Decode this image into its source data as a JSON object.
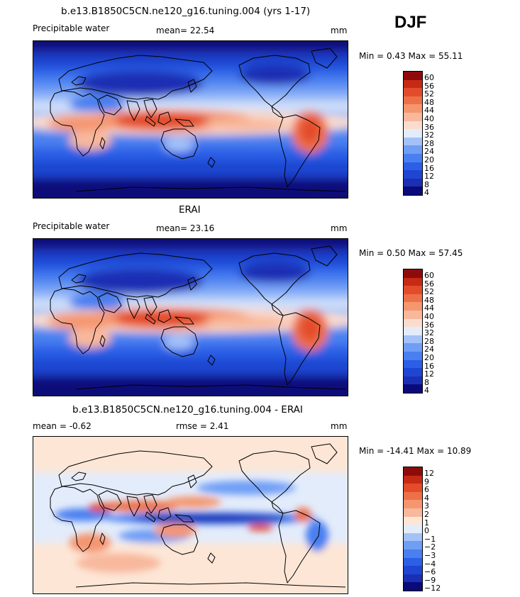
{
  "season": "DJF",
  "panels": [
    {
      "title": "b.e13.B1850C5CN.ne120_g16.tuning.004 (yrs 1-17)",
      "left_label": "Precipitable water",
      "center_label": "mean=   22.54",
      "units": "mm",
      "minmax": "Min =    0.43  Max =   55.11",
      "colorbar_labels": [
        "60",
        "56",
        "52",
        "48",
        "44",
        "40",
        "36",
        "32",
        "28",
        "24",
        "20",
        "16",
        "12",
        "8",
        "4"
      ]
    },
    {
      "title": "ERAI",
      "left_label": "Precipitable water",
      "center_label": "mean=   23.16",
      "units": "mm",
      "minmax": "Min =    0.50  Max =   57.45",
      "colorbar_labels": [
        "60",
        "56",
        "52",
        "48",
        "44",
        "40",
        "36",
        "32",
        "28",
        "24",
        "20",
        "16",
        "12",
        "8",
        "4"
      ]
    },
    {
      "title": "b.e13.B1850C5CN.ne120_g16.tuning.004 - ERAI",
      "left_label": "mean =   -0.62",
      "center_label": "rmse =    2.41",
      "units": "mm",
      "minmax": "Min = -14.41  Max =   10.89",
      "colorbar_labels": [
        "12",
        "9",
        "6",
        "4",
        "3",
        "2",
        "1",
        "0",
        "-1",
        "-2",
        "-3",
        "-4",
        "-6",
        "-9",
        "-12"
      ]
    }
  ],
  "chart_data": [
    {
      "type": "heatmap",
      "title": "b.e13.B1850C5CN.ne120_g16.tuning.004 (yrs 1-17)",
      "variable": "Precipitable water",
      "units": "mm",
      "mean": 22.54,
      "min": 0.43,
      "max": 55.11,
      "contour_levels": [
        4,
        8,
        12,
        16,
        20,
        24,
        28,
        32,
        36,
        40,
        44,
        48,
        52,
        56,
        60
      ],
      "colors": [
        "#0a0a7a",
        "#1a2fb4",
        "#1e46d2",
        "#2c5fe6",
        "#4a7ff0",
        "#6f9ef5",
        "#a4c2f8",
        "#e3ecfb",
        "#fbdccc",
        "#f8b89c",
        "#f5966f",
        "#ee7048",
        "#e34c2b",
        "#c62a14",
        "#8f0b0b"
      ]
    },
    {
      "type": "heatmap",
      "title": "ERAI",
      "variable": "Precipitable water",
      "units": "mm",
      "mean": 23.16,
      "min": 0.5,
      "max": 57.45,
      "contour_levels": [
        4,
        8,
        12,
        16,
        20,
        24,
        28,
        32,
        36,
        40,
        44,
        48,
        52,
        56,
        60
      ],
      "colors": [
        "#0a0a7a",
        "#1a2fb4",
        "#1e46d2",
        "#2c5fe6",
        "#4a7ff0",
        "#6f9ef5",
        "#a4c2f8",
        "#e3ecfb",
        "#fbdccc",
        "#f8b89c",
        "#f5966f",
        "#ee7048",
        "#e34c2b",
        "#c62a14",
        "#8f0b0b"
      ]
    },
    {
      "type": "heatmap",
      "title": "b.e13.B1850C5CN.ne120_g16.tuning.004 - ERAI",
      "units": "mm",
      "mean": -0.62,
      "rmse": 2.41,
      "min": -14.41,
      "max": 10.89,
      "contour_levels": [
        -12,
        -9,
        -6,
        -4,
        -3,
        -2,
        -1,
        0,
        1,
        2,
        3,
        4,
        6,
        9,
        12
      ],
      "colors": [
        "#0a0a7a",
        "#1a2fb4",
        "#1e46d2",
        "#2c5fe6",
        "#4a7ff0",
        "#6f9ef5",
        "#a4c2f8",
        "#e3ecfb",
        "#fde6d6",
        "#f8b89c",
        "#f5966f",
        "#ee7048",
        "#e34c2b",
        "#c62a14",
        "#8f0b0b"
      ]
    }
  ]
}
